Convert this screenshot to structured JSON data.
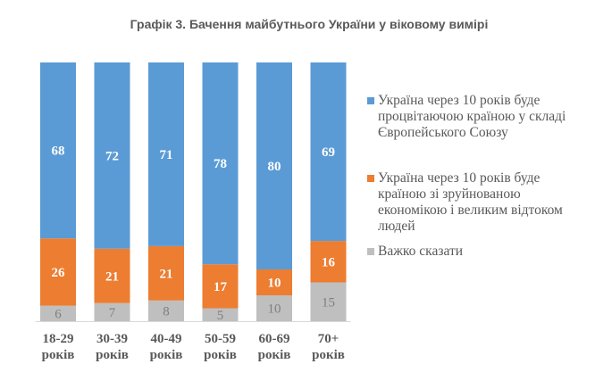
{
  "chart_data": {
    "type": "bar",
    "stacked": true,
    "title": "Графік 3. Бачення майбутнього України у віковому вимірі",
    "xlabel": "",
    "ylabel": "",
    "ylim": [
      0,
      100
    ],
    "grid": false,
    "legend_position": "right",
    "categories": [
      [
        "18-29",
        "років"
      ],
      [
        "30-39",
        "років"
      ],
      [
        "40-49",
        "років"
      ],
      [
        "50-59",
        "років"
      ],
      [
        "60-69",
        "років"
      ],
      [
        "70+",
        "років"
      ]
    ],
    "series": [
      {
        "name": "Україна через 10 років буде процвітаючою країною у складі Європейського Союзу",
        "legend_lines": [
          "Україна через 10 років буде",
          "процвітаючою країною у складі",
          "Європейського Союзу"
        ],
        "color": "#5B9BD5",
        "label_style": "in",
        "values": [
          68,
          72,
          71,
          78,
          80,
          69
        ]
      },
      {
        "name": "Україна через 10 років буде країною зі зруйнованою економікою і великим відтоком людей",
        "legend_lines": [
          "Україна через 10 років буде",
          "країною зі зруйнованою",
          "економікою і великим відтоком",
          "людей"
        ],
        "color": "#ED7D31",
        "label_style": "in",
        "values": [
          26,
          21,
          21,
          17,
          10,
          16
        ]
      },
      {
        "name": "Важко сказати",
        "legend_lines": [
          "Важко сказати"
        ],
        "color": "#BFBFBF",
        "label_style": "gray",
        "values": [
          6,
          7,
          8,
          5,
          10,
          15
        ]
      }
    ]
  }
}
